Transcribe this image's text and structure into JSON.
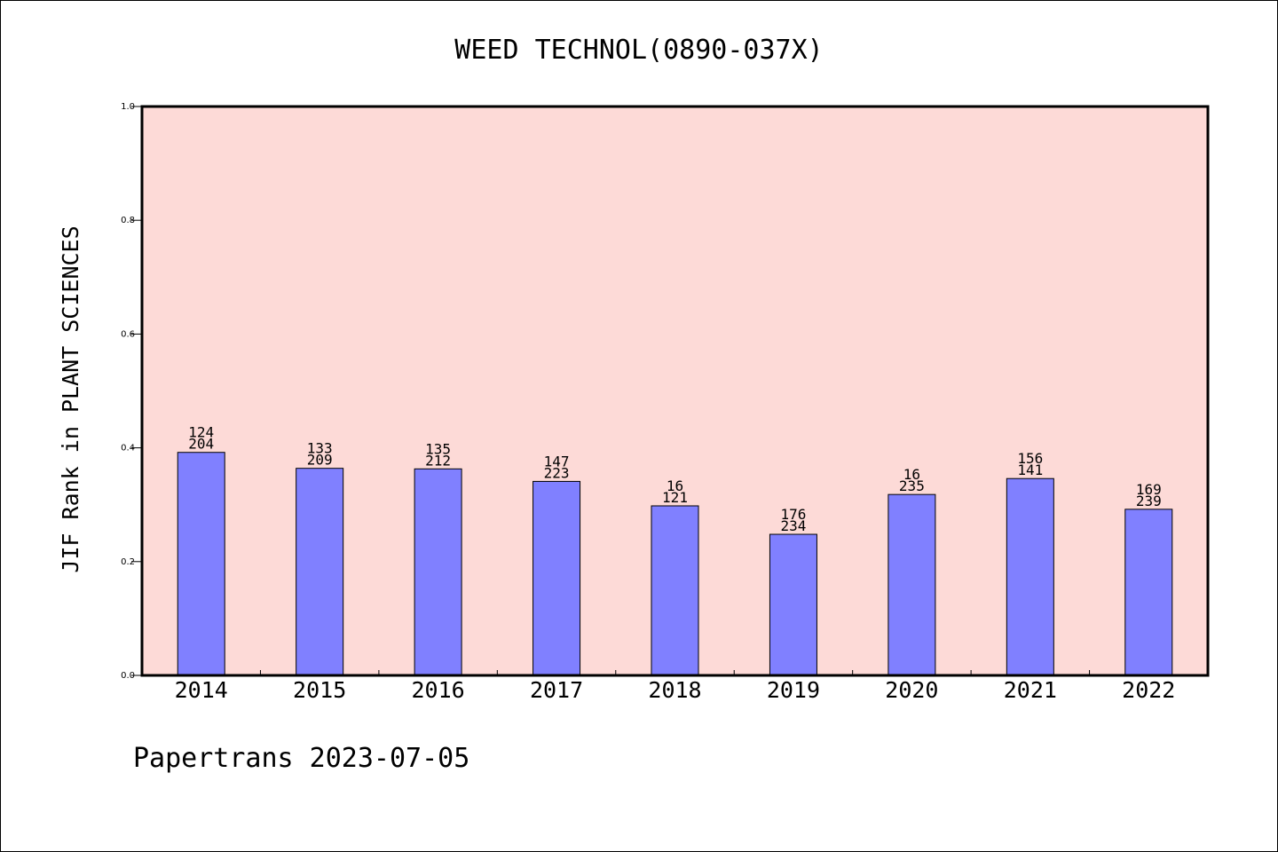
{
  "footer": {
    "text": "Papertrans 2023-07-05"
  },
  "colors": {
    "plot_bg": "#fddad7",
    "bar": "#8080ff",
    "axis": "#000000"
  },
  "chart_data": {
    "type": "bar",
    "title": "WEED TECHNOL(0890-037X)",
    "xlabel": "",
    "ylabel": "JIF Rank in PLANT SCIENCES",
    "categories": [
      "2014",
      "2015",
      "2016",
      "2017",
      "2018",
      "2019",
      "2020",
      "2021",
      "2022"
    ],
    "values": [
      0.392,
      0.364,
      0.363,
      0.341,
      0.298,
      0.248,
      0.318,
      0.346,
      0.292
    ],
    "labels_top": [
      "124",
      "133",
      "135",
      "147",
      "16",
      "176",
      "16",
      "156",
      "169"
    ],
    "labels_bottom": [
      "204",
      "209",
      "212",
      "223",
      "121",
      "234",
      "235",
      "141",
      "239"
    ],
    "ylim": [
      0,
      1.0
    ],
    "yticks": [
      "0.0",
      "0.2",
      "0.4",
      "0.6",
      "0.8",
      "1.0"
    ],
    "grid": false,
    "legend": "none"
  }
}
